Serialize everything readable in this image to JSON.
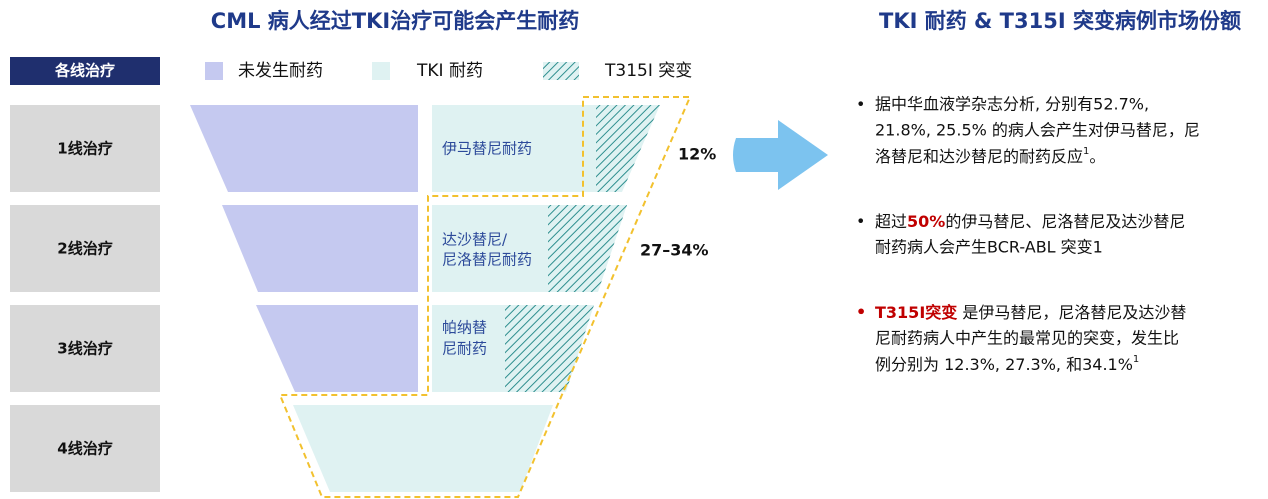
{
  "left": {
    "title": "CML 病人经过TKI治疗可能会产生耐药",
    "header": "各线治疗",
    "rows": [
      "1线治疗",
      "2线治疗",
      "3线治疗",
      "4线治疗"
    ],
    "legend": [
      "未发生耐药",
      "TKI 耐药",
      "T315I 突变"
    ],
    "funnel_labels": [
      [
        "伊马替尼耐药"
      ],
      [
        "达沙替尼/",
        "尼洛替尼耐药"
      ],
      [
        "帕纳替",
        "尼耐药"
      ]
    ],
    "percent_labels": [
      "12%",
      "27–34%"
    ]
  },
  "right": {
    "title": "TKI 耐药 & T315I 突变病例市场份额",
    "bullets": [
      [
        [
          "据中华血液学杂志分析, 分别有52.7%,"
        ],
        [
          "21.8%, 25.5% 的病人会产生对伊马替尼，尼"
        ],
        [
          "洛替尼和达沙替尼的耐药反应",
          "1",
          "。"
        ]
      ],
      [
        [
          "超过",
          "50%",
          "的伊马替尼、尼洛替尼及达沙替尼"
        ],
        [
          "耐药病人会产生BCR-ABL 突变1"
        ]
      ],
      [
        [
          "T315I突变",
          " 是伊马替尼，尼洛替尼及达沙替"
        ],
        [
          "尼耐药病人中产生的最常见的突变，发生比"
        ],
        [
          "例分别为 12.3%, 27.3%, 和34.1%",
          "1"
        ]
      ]
    ]
  }
}
